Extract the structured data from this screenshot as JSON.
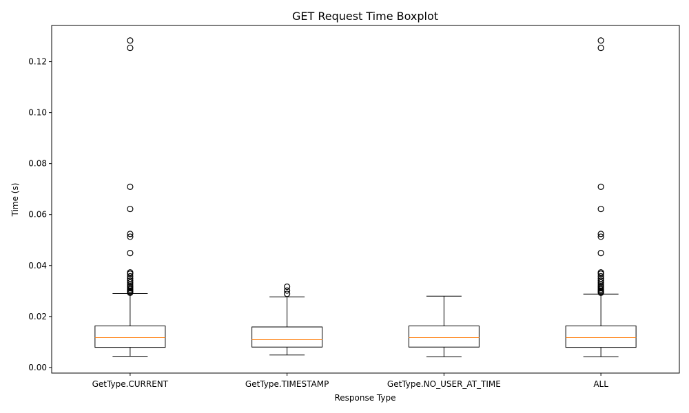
{
  "chart_data": {
    "type": "boxplot",
    "title": "GET Request Time Boxplot",
    "xlabel": "Response Type",
    "ylabel": "Time (s)",
    "ylim": [
      -0.0022,
      0.1342
    ],
    "yticks": [
      0.0,
      0.02,
      0.04,
      0.06,
      0.08,
      0.1,
      0.12
    ],
    "ytick_labels": [
      "0.00",
      "0.02",
      "0.04",
      "0.06",
      "0.08",
      "0.10",
      "0.12"
    ],
    "grid": false,
    "colors": {
      "box": "#000000",
      "median": "#ff7f0e",
      "flier": "#000000"
    },
    "categories": [
      "GetType.CURRENT",
      "GetType.TIMESTAMP",
      "GetType.NO_USER_AT_TIME",
      "ALL"
    ],
    "boxes": [
      {
        "name": "GetType.CURRENT",
        "whisker_low": 0.0044,
        "q1": 0.0079,
        "median": 0.0117,
        "q3": 0.0163,
        "whisker_high": 0.029,
        "fliers": [
          0.1283,
          0.1254,
          0.0709,
          0.0622,
          0.0524,
          0.0513,
          0.0449,
          0.0373,
          0.0368,
          0.0358,
          0.0349,
          0.0341,
          0.0334,
          0.0327,
          0.0321,
          0.0316,
          0.0311,
          0.0306,
          0.0301,
          0.0297,
          0.0293
        ]
      },
      {
        "name": "GetType.TIMESTAMP",
        "whisker_low": 0.0049,
        "q1": 0.008,
        "median": 0.0109,
        "q3": 0.0159,
        "whisker_high": 0.0277,
        "fliers": [
          0.0317,
          0.0302,
          0.0289
        ]
      },
      {
        "name": "GetType.NO_USER_AT_TIME",
        "whisker_low": 0.0042,
        "q1": 0.008,
        "median": 0.0117,
        "q3": 0.0163,
        "whisker_high": 0.028,
        "fliers": []
      },
      {
        "name": "ALL",
        "whisker_low": 0.0042,
        "q1": 0.0079,
        "median": 0.0117,
        "q3": 0.0163,
        "whisker_high": 0.0288,
        "fliers": [
          0.1283,
          0.1254,
          0.0709,
          0.0622,
          0.0524,
          0.0513,
          0.0449,
          0.0373,
          0.0368,
          0.0358,
          0.0349,
          0.0341,
          0.0334,
          0.0327,
          0.0321,
          0.0316,
          0.0311,
          0.0306,
          0.0301,
          0.0297,
          0.0293
        ]
      }
    ]
  }
}
